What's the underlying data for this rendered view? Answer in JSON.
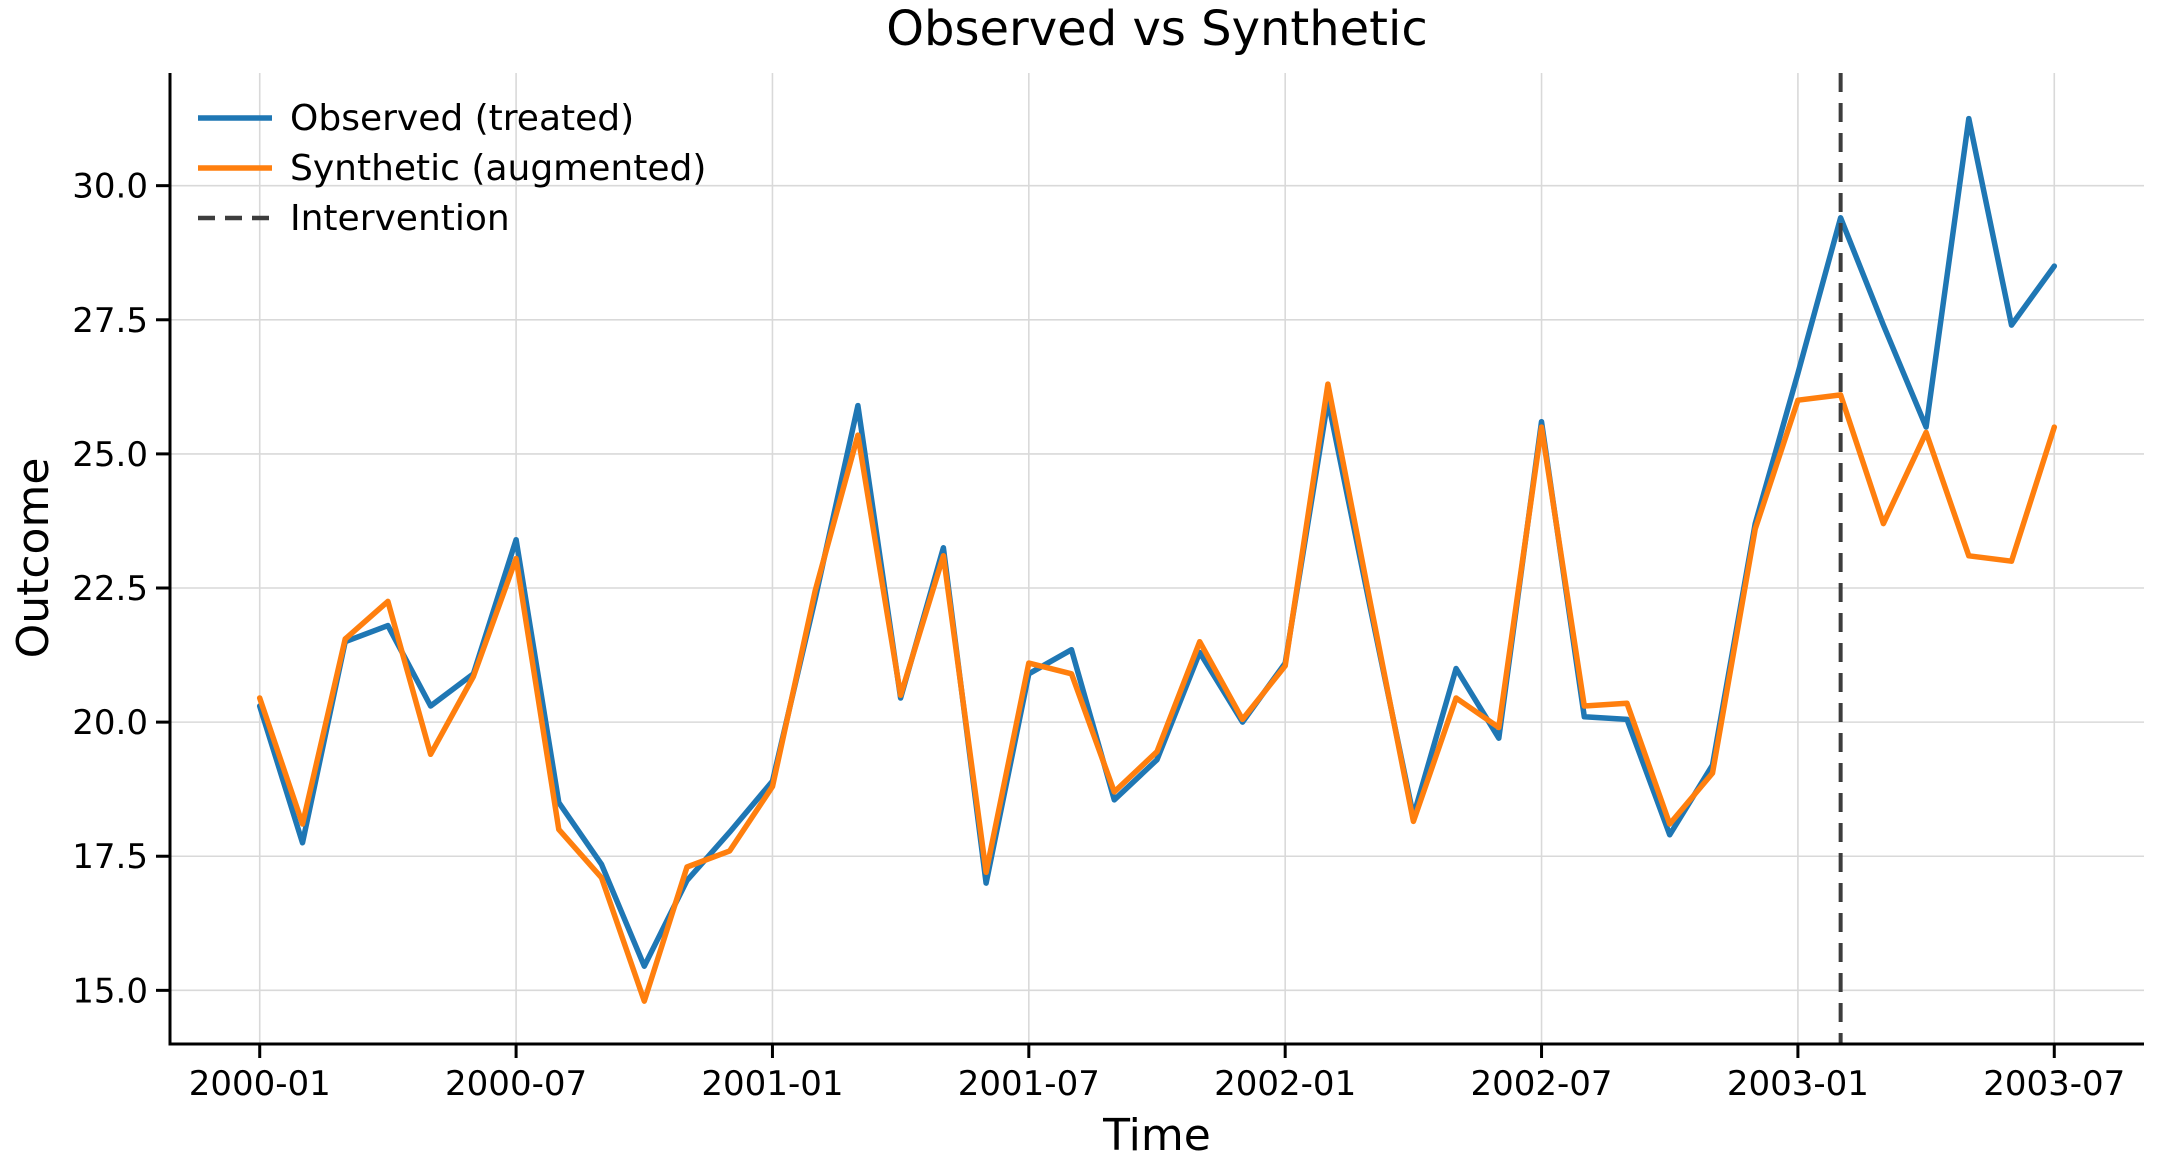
{
  "title": "Observed vs Synthetic",
  "x_axis": {
    "label": "Time",
    "tick_labels": [
      "2000-01",
      "2000-07",
      "2001-01",
      "2001-07",
      "2002-01",
      "2002-07",
      "2003-01",
      "2003-07"
    ]
  },
  "y_axis": {
    "label": "Outcome",
    "tick_values": [
      15,
      17.5,
      20,
      22.5,
      25,
      27.5,
      30
    ],
    "tick_labels": [
      "15.0",
      "17.5",
      "20.0",
      "22.5",
      "25.0",
      "27.5",
      "30.0"
    ]
  },
  "legend": {
    "items": [
      {
        "label": "Observed (treated)",
        "color": "#1f77b4",
        "style": "solid"
      },
      {
        "label": "Synthetic (augmented)",
        "color": "#ff7f0e",
        "style": "solid"
      },
      {
        "label": "Intervention",
        "color": "#3d3d3d",
        "style": "dashed"
      }
    ]
  },
  "colors": {
    "observed": "#1f77b4",
    "synthetic": "#ff7f0e",
    "intervention": "#3d3d3d",
    "grid": "#d9d9d9",
    "axis": "#000000",
    "background": "#ffffff"
  },
  "chart_data": {
    "type": "line",
    "title": "Observed vs Synthetic",
    "xlabel": "Time",
    "ylabel": "Outcome",
    "grid": true,
    "legend_position": "upper left",
    "ylim": [
      14.0,
      32.1
    ],
    "x_tick_labels": [
      "2000-01",
      "2000-07",
      "2001-01",
      "2001-07",
      "2002-01",
      "2002-07",
      "2003-01",
      "2003-07"
    ],
    "x": [
      "2000-01",
      "2000-02",
      "2000-03",
      "2000-04",
      "2000-05",
      "2000-06",
      "2000-07",
      "2000-08",
      "2000-09",
      "2000-10",
      "2000-11",
      "2000-12",
      "2001-01",
      "2001-02",
      "2001-03",
      "2001-04",
      "2001-05",
      "2001-06",
      "2001-07",
      "2001-08",
      "2001-09",
      "2001-10",
      "2001-11",
      "2001-12",
      "2002-01",
      "2002-02",
      "2002-03",
      "2002-04",
      "2002-05",
      "2002-06",
      "2002-07",
      "2002-08",
      "2002-09",
      "2002-10",
      "2002-11",
      "2002-12",
      "2003-01",
      "2003-02",
      "2003-03",
      "2003-04",
      "2003-05",
      "2003-06",
      "2003-07"
    ],
    "series": [
      {
        "name": "Observed (treated)",
        "color": "#1f77b4",
        "values": [
          20.3,
          17.75,
          21.5,
          21.8,
          20.3,
          20.9,
          23.4,
          18.5,
          17.35,
          15.45,
          17.05,
          17.95,
          18.9,
          22.3,
          25.9,
          20.45,
          23.25,
          17.0,
          20.9,
          21.35,
          18.55,
          19.3,
          21.3,
          20.0,
          21.1,
          26.0,
          22.1,
          18.25,
          21.0,
          19.7,
          25.6,
          20.1,
          20.05,
          17.9,
          19.2,
          23.7,
          26.5,
          29.4,
          27.4,
          25.5,
          31.25,
          27.4,
          28.5
        ]
      },
      {
        "name": "Synthetic (augmented)",
        "color": "#ff7f0e",
        "values": [
          20.45,
          18.1,
          21.55,
          22.25,
          19.4,
          20.85,
          23.05,
          18.0,
          17.1,
          14.8,
          17.3,
          17.6,
          18.8,
          22.45,
          25.35,
          20.5,
          23.1,
          17.2,
          21.1,
          20.9,
          18.7,
          19.45,
          21.5,
          20.05,
          21.05,
          26.3,
          22.2,
          18.15,
          20.45,
          19.9,
          25.5,
          20.3,
          20.35,
          18.1,
          19.05,
          23.6,
          26.0,
          26.1,
          23.7,
          25.4,
          23.1,
          23.0,
          25.5
        ]
      }
    ],
    "intervention": {
      "label": "Intervention",
      "x": "2003-02",
      "line_style": "dashed",
      "color": "#3d3d3d"
    }
  }
}
